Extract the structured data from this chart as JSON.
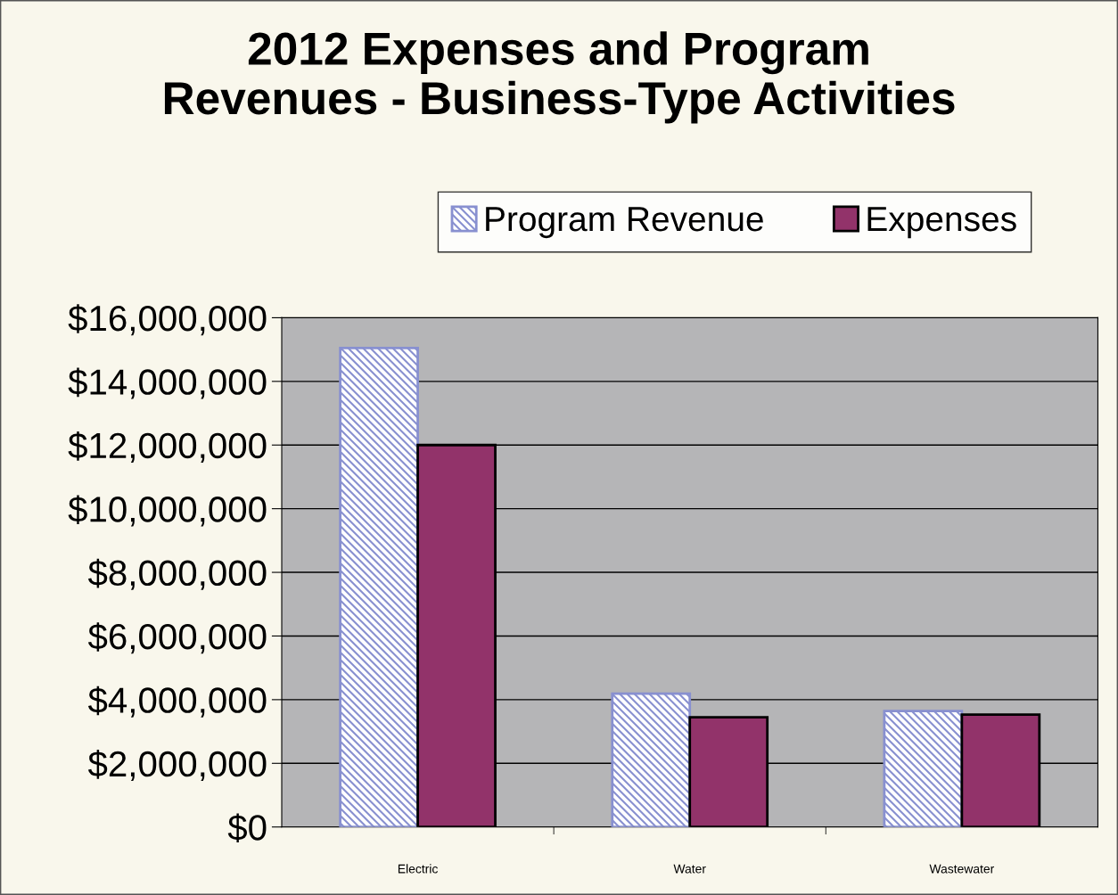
{
  "chart_data": {
    "type": "bar",
    "title": "2012 Expenses and Program\nRevenues - Business-Type Activities",
    "categories": [
      "Electric",
      "Water",
      "Wastewater"
    ],
    "series": [
      {
        "name": "Program Revenue",
        "color": "#8890d0",
        "values": [
          15050000,
          4190000,
          3640000
        ]
      },
      {
        "name": "Expenses",
        "color": "#92336a",
        "values": [
          12000000,
          3450000,
          3530000
        ]
      }
    ],
    "ylim": [
      0,
      16000000
    ],
    "yticks": [
      {
        "value": 0,
        "label": "$0"
      },
      {
        "value": 2000000,
        "label": "$2,000,000"
      },
      {
        "value": 4000000,
        "label": "$4,000,000"
      },
      {
        "value": 6000000,
        "label": "$6,000,000"
      },
      {
        "value": 8000000,
        "label": "$8,000,000"
      },
      {
        "value": 10000000,
        "label": "$10,000,000"
      },
      {
        "value": 12000000,
        "label": "$12,000,000"
      },
      {
        "value": 14000000,
        "label": "$14,000,000"
      },
      {
        "value": 16000000,
        "label": "$16,000,000"
      }
    ],
    "grid": "y",
    "legend": "top"
  }
}
